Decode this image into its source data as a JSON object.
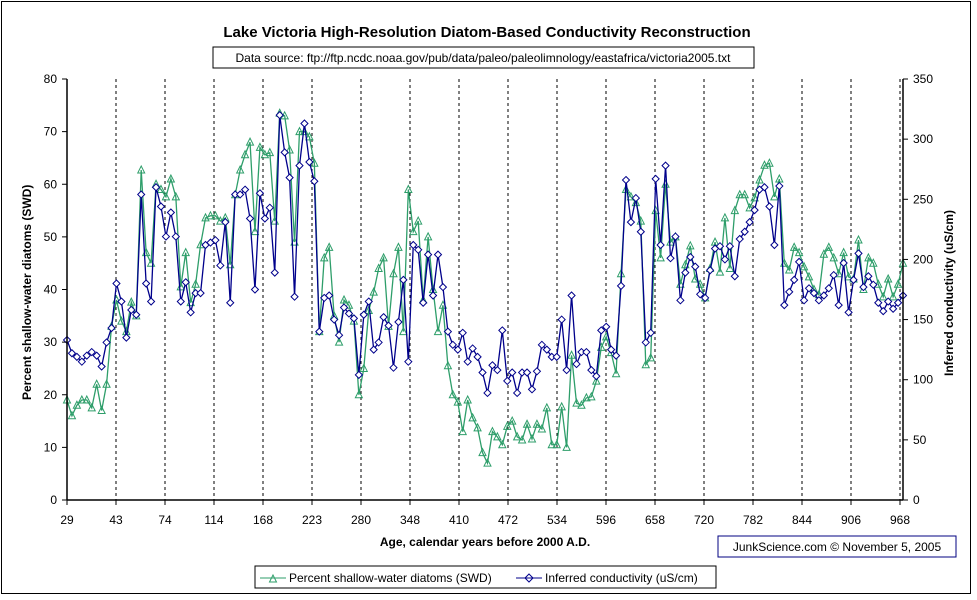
{
  "chart_data": {
    "type": "line",
    "title": "Lake Victoria High-Resolution Diatom-Based Conductivity Reconstruction",
    "subtitle": "Data source: ftp://ftp.ncdc.noaa.gov/pub/data/paleo/paleolimnology/eastafrica/victoria2005.txt",
    "xlabel": "Age, calendar years before 2000 A.D.",
    "ylabel_left": "Percent shallow-water diatoms (SWD)",
    "ylabel_right": "Inferred conductivity (uS/cm)",
    "credit": "JunkScience.com ©  November 5, 2005",
    "x_tick_labels": [
      "29",
      "43",
      "74",
      "114",
      "168",
      "223",
      "280",
      "348",
      "410",
      "472",
      "534",
      "596",
      "658",
      "720",
      "782",
      "844",
      "906",
      "968"
    ],
    "ylim_left": [
      0,
      80
    ],
    "yticks_left": [
      0,
      10,
      20,
      30,
      40,
      50,
      60,
      70,
      80
    ],
    "ylim_right": [
      0,
      350
    ],
    "yticks_right": [
      0,
      50,
      100,
      150,
      200,
      250,
      300,
      350
    ],
    "grid": "vertical dashed at x ticks",
    "legend_placement": "bottom",
    "series": [
      {
        "name": "Percent shallow-water diatoms (SWD)",
        "axis": "left",
        "color": "#2e9e6a",
        "marker": "triangle",
        "values": [
          19,
          16,
          18,
          19,
          19,
          17.5,
          22,
          17,
          22,
          33,
          38,
          34,
          32,
          37.6,
          35,
          62.7,
          47,
          45,
          60,
          59,
          57.6,
          61,
          57.6,
          40.5,
          47,
          37.5,
          41,
          48.5,
          53.6,
          54,
          54,
          53,
          53.6,
          44.7,
          58,
          62.7,
          65.6,
          68,
          51,
          67,
          65.6,
          66,
          53,
          73.5,
          73,
          66.5,
          49,
          70,
          70,
          69,
          64,
          32,
          46,
          48,
          35,
          30,
          38,
          37,
          34,
          20,
          25,
          36,
          39.5,
          44,
          46,
          33,
          43,
          48,
          32,
          59,
          51,
          53,
          38,
          50,
          40,
          32,
          37,
          25.5,
          20,
          18.6,
          13,
          19,
          15.6,
          13.7,
          9,
          7,
          13,
          12,
          10.5,
          14,
          15,
          12,
          11.4,
          14.4,
          11.6,
          14.4,
          13.5,
          17.5,
          10.5,
          10.5,
          17.7,
          10,
          27.5,
          18.4,
          18,
          19.4,
          19.6,
          22.6,
          29,
          31,
          28,
          24,
          43,
          59,
          57.6,
          56.5,
          53,
          25.7,
          27,
          55,
          46,
          60,
          49,
          50,
          41,
          44.7,
          48.3,
          42,
          41,
          38.4,
          44,
          49,
          43.3,
          53.6,
          44,
          55,
          58,
          58,
          55.5,
          57.4,
          60.8,
          63.6,
          64,
          57.6,
          61,
          45,
          43.7,
          48,
          47,
          44.3,
          42.4,
          40,
          39,
          46.7,
          48,
          46,
          43,
          47,
          42.4,
          42,
          49.4,
          40,
          46,
          45,
          41,
          38.6,
          42,
          38.6,
          41,
          45
        ]
      },
      {
        "name": "Inferred conductivity (uS/cm)",
        "axis": "right",
        "color": "#00008b",
        "marker": "diamond",
        "values": [
          133,
          122,
          119,
          115,
          120,
          123,
          120,
          111,
          131,
          143,
          180,
          165,
          135,
          158,
          154,
          254,
          180,
          165,
          260,
          244,
          219,
          239,
          219,
          165,
          181,
          156,
          172,
          172,
          212,
          214,
          216,
          195,
          231,
          164,
          254,
          254,
          258,
          234,
          175,
          255,
          234,
          243,
          189,
          320,
          289,
          268,
          169,
          278,
          313,
          281,
          265,
          140,
          168,
          170,
          150,
          137,
          160,
          155,
          151,
          104,
          154,
          165,
          125,
          131,
          152,
          145,
          110,
          148,
          183,
          115,
          212,
          208,
          164,
          204,
          170,
          204,
          177,
          140,
          129,
          125,
          139,
          115,
          126,
          119,
          106,
          89,
          112,
          108,
          141,
          99,
          106,
          89,
          106,
          106,
          92,
          107,
          129,
          125,
          119,
          119,
          150,
          108,
          170,
          113,
          123,
          123,
          108,
          103,
          141,
          144,
          125,
          120,
          178,
          266,
          231,
          251,
          223,
          131,
          139,
          267,
          212,
          278,
          201,
          219,
          166,
          189,
          202,
          194,
          171,
          168,
          191,
          209,
          211,
          200,
          211,
          186,
          217,
          223,
          231,
          241,
          258,
          260,
          244,
          212,
          261,
          162,
          173,
          183,
          198,
          166,
          176,
          172,
          166,
          170,
          176,
          187,
          162,
          197,
          156,
          183,
          205,
          177,
          186,
          179,
          164,
          157,
          165,
          159,
          164,
          170
        ]
      }
    ]
  }
}
